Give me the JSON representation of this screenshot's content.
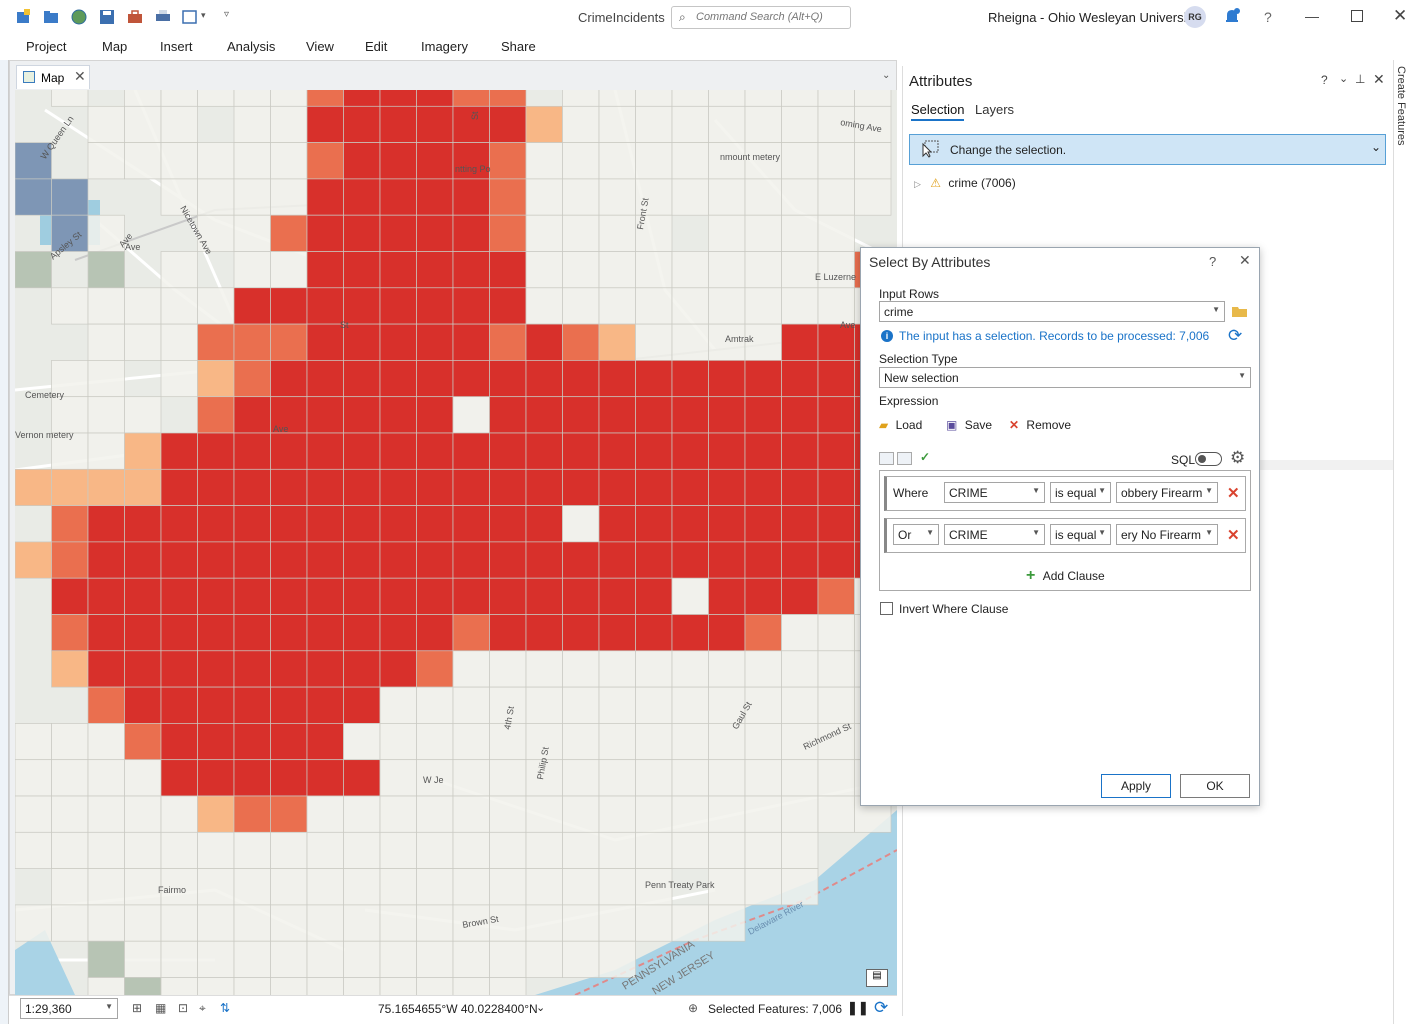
{
  "window": {
    "app_title": "CrimeIncidents",
    "search_placeholder": "Command Search (Alt+Q)",
    "user": "Rheigna - Ohio Wesleyan University",
    "avatar_initials": "RG"
  },
  "ribbon": {
    "tabs": [
      "Project",
      "Map",
      "Insert",
      "Analysis",
      "View",
      "Edit",
      "Imagery",
      "Share"
    ]
  },
  "map": {
    "tab_label": "Map",
    "labels": [
      "W Queen Ln",
      "Apsley St",
      "Nicetown Ave",
      "Ave",
      "Cemetery",
      "Vernon metery",
      "Ave",
      "Ave",
      "E Luzerne",
      "Amtrak",
      "St",
      "Ave",
      "Gaul St",
      "Richmond St",
      "Fairmo",
      "Penn Treaty Park",
      "Delaware River",
      "PENNSYLVANIA",
      "NEW JERSEY",
      "Brown St",
      "W Je",
      "4th St",
      "Philip St",
      "Front St",
      "nmount metery",
      "ntting Po",
      "St",
      "oming Ave"
    ]
  },
  "attributes_pane": {
    "title": "Attributes",
    "tabs": [
      "Selection",
      "Layers"
    ],
    "change_selection": "Change the selection.",
    "layer_node": "crime (7006)"
  },
  "side_strip": {
    "create_features": "Create Features"
  },
  "dialog": {
    "title": "Select By Attributes",
    "input_rows_label": "Input Rows",
    "input_rows_value": "crime",
    "info_text": "The input has a selection. Records to be processed: 7,006",
    "selection_type_label": "Selection Type",
    "selection_type_value": "New selection",
    "expression_label": "Expression",
    "load": "Load",
    "save": "Save",
    "remove": "Remove",
    "sql": "SQL",
    "clauses": [
      {
        "connector": "Where",
        "field": "CRIME",
        "operator": "is equal",
        "value": "obbery Firearm"
      },
      {
        "connector": "Or",
        "field": "CRIME",
        "operator": "is equal",
        "value": "ery No Firearm"
      }
    ],
    "add_clause": "Add Clause",
    "invert_where": "Invert Where Clause",
    "apply": "Apply",
    "ok": "OK"
  },
  "status_bar": {
    "scale": "1:29,360",
    "coordinates": "75.1654655°W 40.0228400°N",
    "selected_features": "Selected Features: 7,006"
  },
  "colors": {
    "hot": "#d8302b",
    "warm": "#ea6f4f",
    "light": "#f8b786",
    "neutral": "#f2f2ec",
    "cool": "#7e96b5",
    "sage": "#b7c4b4",
    "accent": "#1a73c8"
  }
}
